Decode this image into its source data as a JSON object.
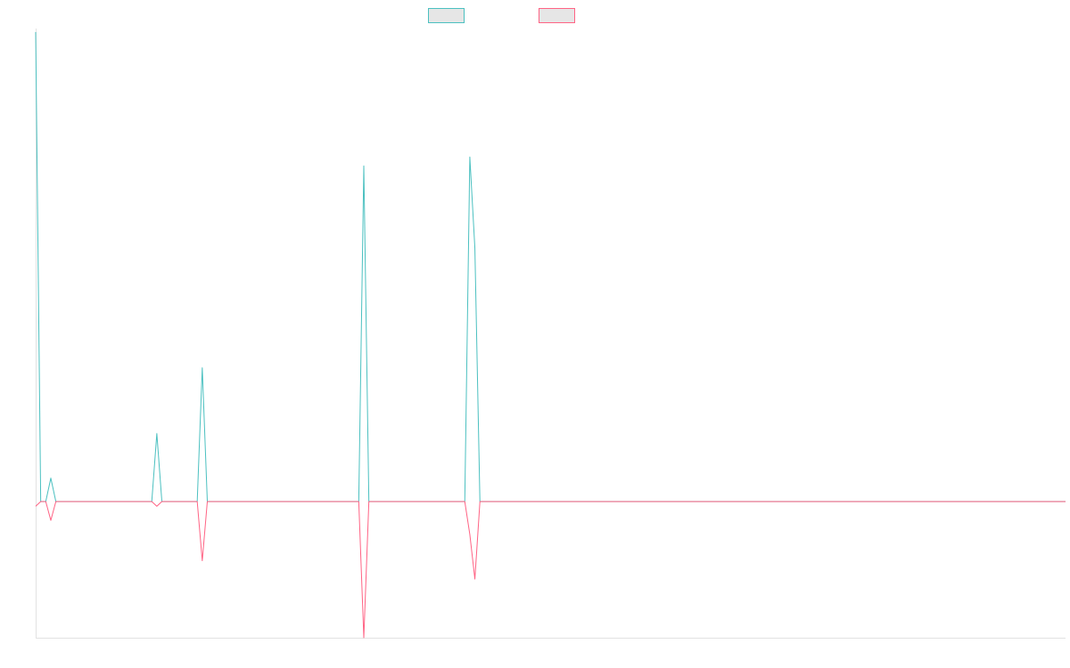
{
  "chart_data": {
    "type": "line",
    "title": "",
    "xlabel": "",
    "ylabel": "",
    "legend_placement": "top-center",
    "grid": false,
    "x": [
      0,
      1,
      2,
      3,
      4,
      5,
      6,
      7,
      8,
      9,
      10,
      11,
      12,
      13,
      14,
      15,
      16,
      17,
      18,
      19,
      20,
      21,
      22,
      23,
      24,
      25,
      26,
      27,
      28,
      29,
      30,
      31,
      32,
      33,
      34,
      35,
      36,
      37,
      38,
      39,
      40,
      41,
      42,
      43,
      44,
      45,
      46,
      47,
      48,
      49,
      50,
      51,
      52,
      53,
      54,
      55,
      56,
      57,
      58,
      59,
      60,
      61,
      62,
      63,
      64,
      65,
      66,
      67,
      68,
      69,
      70,
      71,
      72,
      73,
      74,
      75,
      76,
      77,
      78,
      79,
      80,
      81,
      82,
      83,
      84,
      85,
      86,
      87,
      88,
      89,
      90,
      91,
      92,
      93,
      94,
      95,
      96,
      97,
      98,
      99,
      100,
      101,
      102,
      103,
      104,
      105,
      106,
      107,
      108,
      109,
      110,
      111,
      112,
      113,
      114,
      115,
      116,
      117,
      118,
      119,
      120,
      121,
      122,
      123,
      124,
      125,
      126,
      127,
      128,
      129,
      130,
      131,
      132,
      133,
      134,
      135,
      136,
      137,
      138,
      139,
      140,
      141,
      142,
      143,
      144,
      145,
      146,
      147,
      148,
      149,
      150,
      151,
      152,
      153,
      154,
      155,
      156,
      157,
      158,
      159,
      160,
      161,
      162,
      163,
      164,
      165,
      166,
      167,
      168,
      169,
      170,
      171,
      172,
      173,
      174,
      175,
      176,
      177,
      178,
      179,
      180,
      181,
      182,
      183,
      184,
      185,
      186,
      187,
      188,
      189,
      190,
      191,
      192,
      193,
      194,
      195,
      196,
      197,
      198,
      199,
      200,
      201,
      202,
      203,
      204
    ],
    "xlim": [
      0,
      204
    ],
    "ylim": [
      -29,
      100
    ],
    "series": [
      {
        "color": "#4bc0c0",
        "points": [
          [
            0,
            100
          ],
          [
            1,
            0
          ],
          [
            2,
            0
          ],
          [
            3,
            5
          ],
          [
            4,
            0
          ],
          [
            23,
            0
          ],
          [
            24,
            14.5
          ],
          [
            25,
            0
          ],
          [
            32,
            0
          ],
          [
            33,
            28.5
          ],
          [
            34,
            0
          ],
          [
            64,
            0
          ],
          [
            65,
            71.5
          ],
          [
            66,
            0
          ],
          [
            85,
            0
          ],
          [
            86,
            73.4
          ],
          [
            87,
            54
          ],
          [
            88,
            0
          ],
          [
            204,
            0
          ]
        ]
      },
      {
        "color": "#ff6384",
        "points": [
          [
            0,
            -1
          ],
          [
            1,
            0
          ],
          [
            2,
            0
          ],
          [
            3,
            -4
          ],
          [
            4,
            0
          ],
          [
            23,
            0
          ],
          [
            24,
            -1
          ],
          [
            25,
            0
          ],
          [
            32,
            0
          ],
          [
            33,
            -12.6
          ],
          [
            34,
            0
          ],
          [
            64,
            0
          ],
          [
            65,
            -29
          ],
          [
            66,
            0
          ],
          [
            85,
            0
          ],
          [
            86,
            -7
          ],
          [
            87,
            -16.5
          ],
          [
            88,
            0
          ],
          [
            204,
            0
          ]
        ]
      }
    ]
  }
}
